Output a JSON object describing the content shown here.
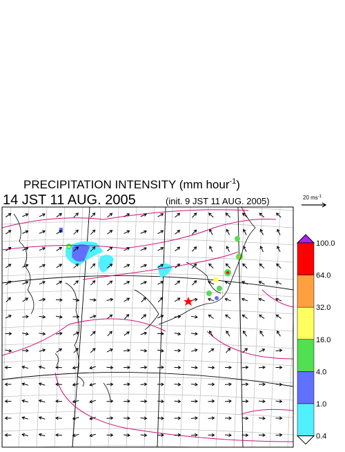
{
  "header": {
    "title": "PRECIPITATION INTENSITY (mm hour",
    "title_sup": "-1",
    "title_end": ")",
    "time": "14 JST 11 AUG. 2005",
    "init": "(init. 9 JST 11 AUG. 2005)"
  },
  "vector_legend": {
    "label": "20 ms",
    "label_sup": "-1"
  },
  "colorbar": {
    "labels": [
      "100.0",
      "64.0",
      "32.0",
      "16.0",
      "4.0",
      "1.0",
      "0.4"
    ],
    "colors": [
      "#ff0000",
      "#ffa040",
      "#ffff60",
      "#50e050",
      "#6070ff",
      "#50f0ff"
    ],
    "top_color": "#b020ff",
    "bottom_color": "#ffffff"
  }
}
